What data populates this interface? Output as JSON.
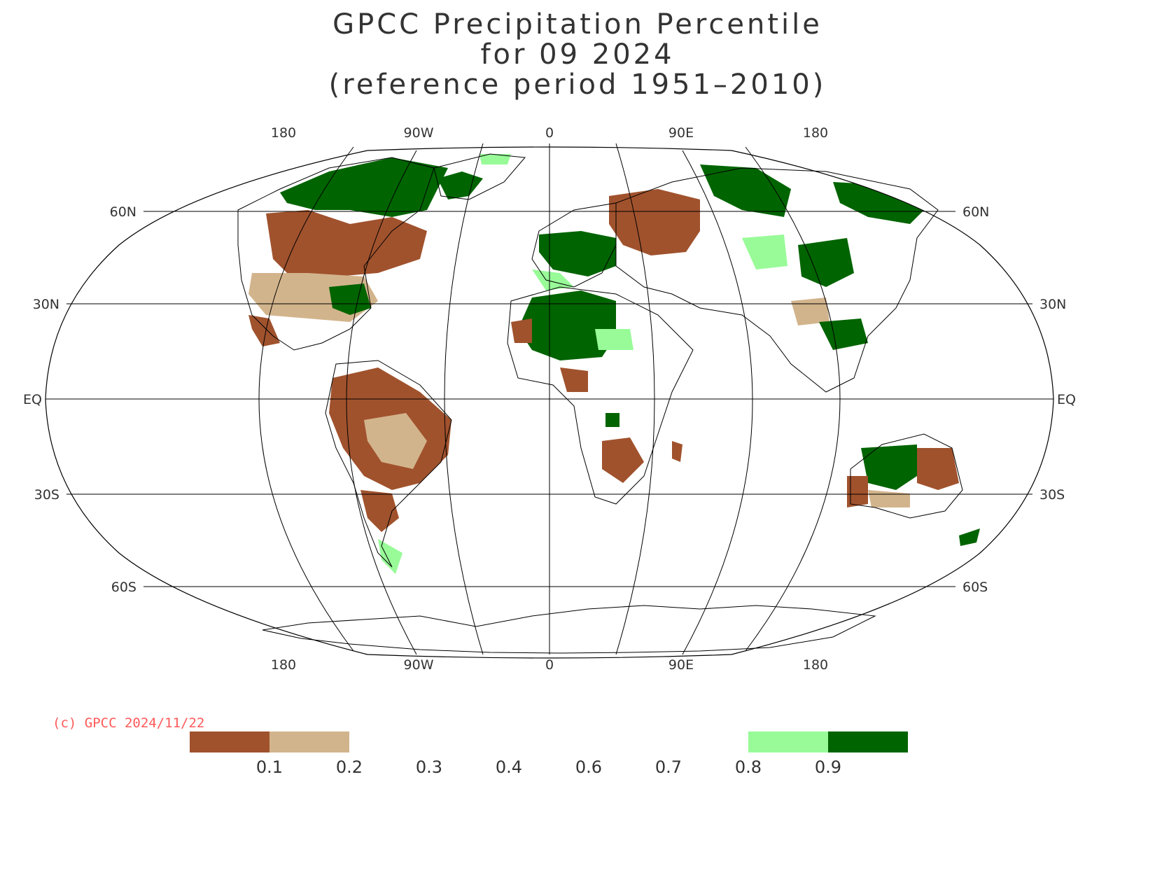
{
  "title": {
    "line1": "GPCC Precipitation Percentile",
    "line2": "for 09 2024",
    "line3": "(reference period 1951–2010)"
  },
  "map": {
    "projection": "robinson",
    "lon_labels_top": [
      "180",
      "90W",
      "0",
      "90E",
      "180"
    ],
    "lon_labels_bottom": [
      "180",
      "90W",
      "0",
      "90E",
      "180"
    ],
    "lat_labels": [
      "60N",
      "30N",
      "EQ",
      "30S",
      "60S"
    ]
  },
  "copyright": "(c) GPCC 2024/11/22",
  "legend": {
    "boxes": [
      {
        "color": "#a0522d",
        "range": "below 0.1"
      },
      {
        "color": "#d2b48c",
        "range": "0.1-0.2"
      },
      {
        "color": "#ffffff",
        "range": "0.2-0.3"
      },
      {
        "color": "#ffffff",
        "range": "0.3-0.4"
      },
      {
        "color": "#ffffff",
        "range": "0.4-0.6"
      },
      {
        "color": "#ffffff",
        "range": "0.6-0.7"
      },
      {
        "color": "#ffffff",
        "range": "0.7-0.8"
      },
      {
        "color": "#98fb98",
        "range": "0.8-0.9"
      },
      {
        "color": "#006400",
        "range": "above 0.9"
      }
    ],
    "ticks": [
      "0.1",
      "0.2",
      "0.3",
      "0.4",
      "0.6",
      "0.7",
      "0.8",
      "0.9"
    ]
  },
  "colors": {
    "very_dry": "#a0522d",
    "dry": "#d2b48c",
    "wet": "#98fb98",
    "very_wet": "#006400",
    "copyright": "#ff5a5a"
  }
}
